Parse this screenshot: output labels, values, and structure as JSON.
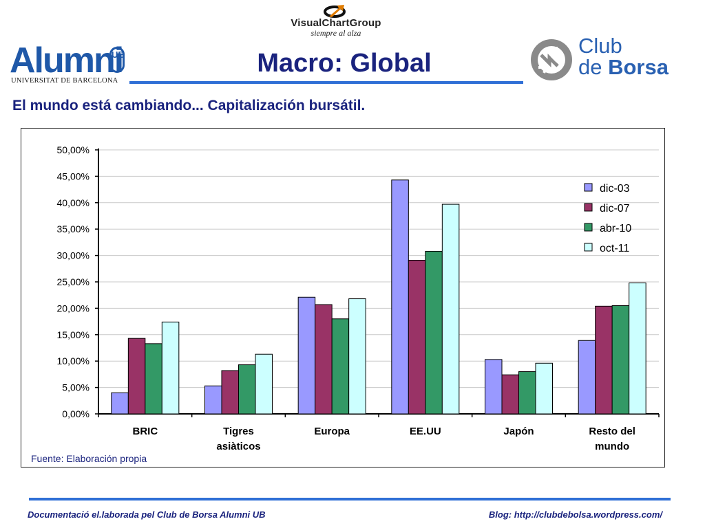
{
  "header": {
    "vcg_name": "VisualChartGroup",
    "vcg_tagline": "siempre al alza",
    "alumni_word": "Alumni",
    "alumni_badge": "UB",
    "alumni_sub": "UNIVERSITAT DE BARCELONA",
    "title": "Macro: Global",
    "club_line1": "Club",
    "club_line2a": "de",
    "club_line2b": "Borsa"
  },
  "subtitle": "El mundo está cambiando... Capitalización bursátil.",
  "chart_data": {
    "type": "bar",
    "title": "",
    "xlabel": "",
    "ylabel": "",
    "ylim": [
      0,
      50
    ],
    "yticks": [
      "0,00%",
      "5,00%",
      "10,00%",
      "15,00%",
      "20,00%",
      "25,00%",
      "30,00%",
      "35,00%",
      "40,00%",
      "45,00%",
      "50,00%"
    ],
    "grid": true,
    "legend_position": "top-right",
    "categories": [
      [
        "BRIC"
      ],
      [
        "Tigres",
        "asiàticos"
      ],
      [
        "Europa"
      ],
      [
        "EE.UU"
      ],
      [
        "Japón"
      ],
      [
        "Resto del",
        "mundo"
      ]
    ],
    "series": [
      {
        "name": "dic-03",
        "color": "#9999ff",
        "values": [
          4.0,
          5.3,
          22.1,
          44.3,
          10.3,
          13.9
        ]
      },
      {
        "name": "dic-07",
        "color": "#993366",
        "values": [
          14.3,
          8.2,
          20.7,
          29.1,
          7.4,
          20.4
        ]
      },
      {
        "name": "abr-10",
        "color": "#339966",
        "values": [
          13.3,
          9.3,
          18.0,
          30.8,
          8.0,
          20.5
        ]
      },
      {
        "name": "oct-11",
        "color": "#ccffff",
        "values": [
          17.4,
          11.3,
          21.8,
          39.7,
          9.6,
          24.8
        ]
      }
    ]
  },
  "source": "Fuente: Elaboración propia",
  "footer": {
    "left": "Documentació el.laborada pel Club de Borsa Alumni UB",
    "right": "Blog: http://clubdebolsa.wordpress.com/"
  },
  "colors": {
    "brand_blue": "#1f58a8",
    "title_navy": "#1a237e",
    "rule_blue": "#2f6fd6"
  }
}
